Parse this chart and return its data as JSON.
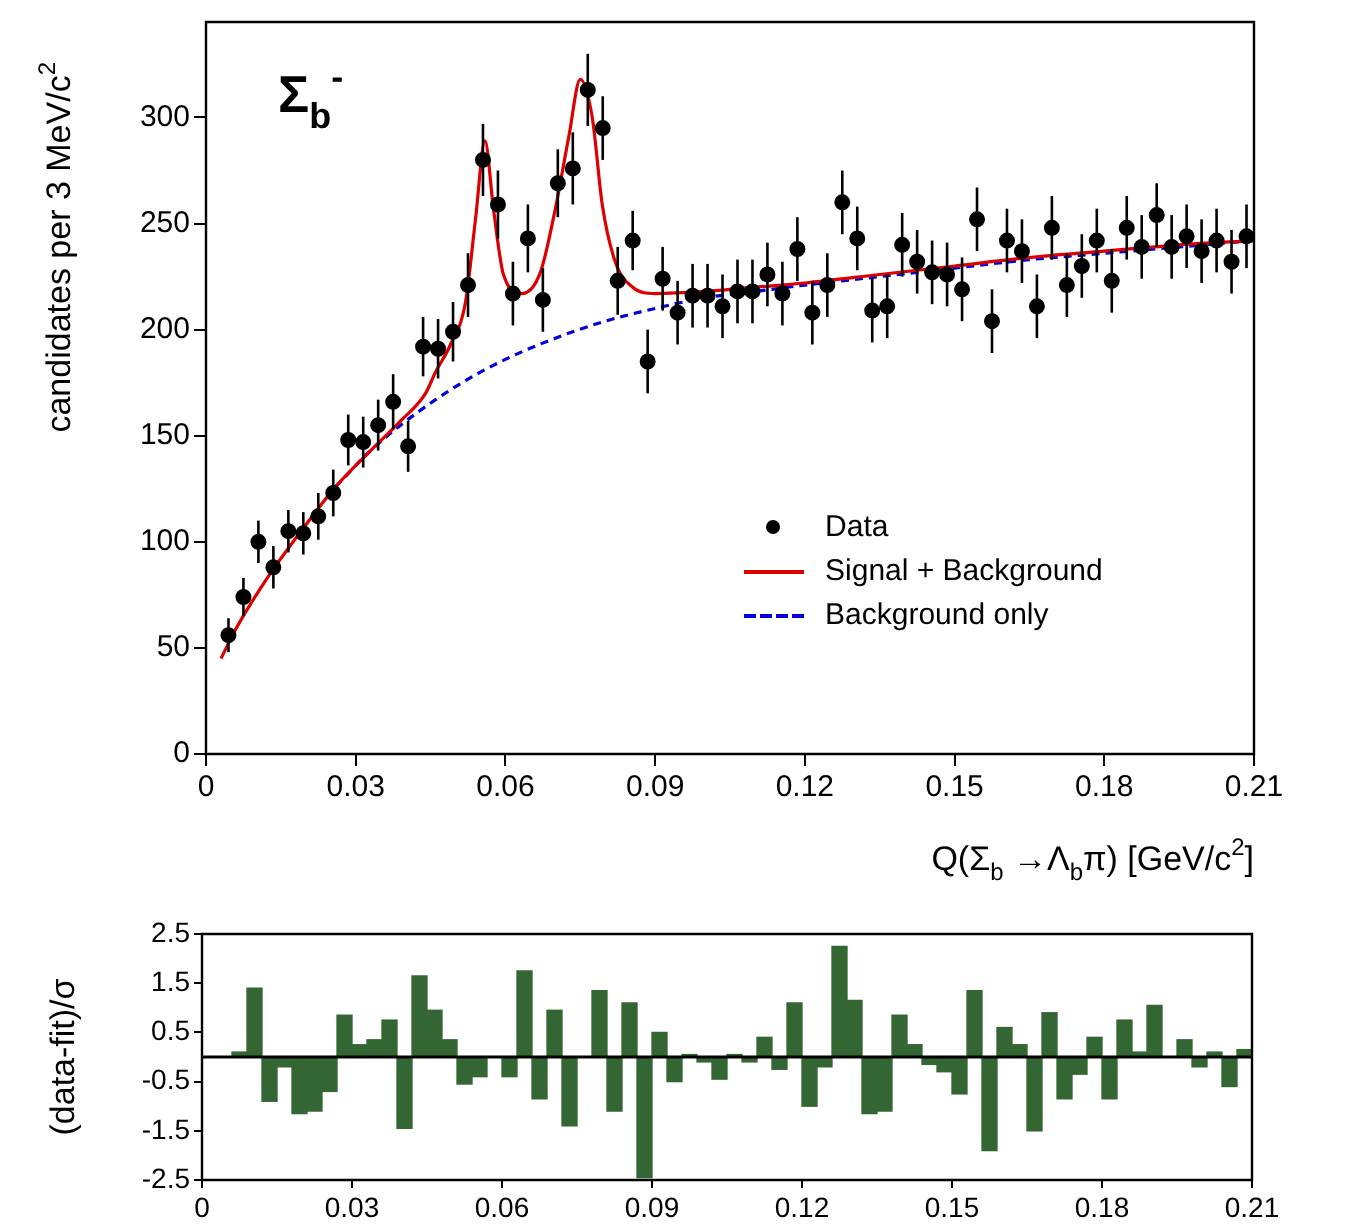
{
  "chart_data": [
    {
      "type": "scatter",
      "annotations": [
        "Σ$_{b}$$^{-}$"
      ],
      "xlabel": "Q(Σ$_{b}$ →Λ$_{b}$π) [GeV/c$^{2}$]",
      "ylabel": "candidates per 3 MeV/c$^{2}$",
      "xlim": [
        0,
        0.21
      ],
      "xticks": [
        0,
        0.03,
        0.06,
        0.09,
        0.12,
        0.15,
        0.18,
        0.21
      ],
      "ylim": [
        0,
        345
      ],
      "yticks": [
        0,
        50,
        100,
        150,
        200,
        250,
        300
      ],
      "legend": "bottom right",
      "series": [
        {
          "name": "Data",
          "color": "#000000",
          "marker": "circle",
          "x": [
            0.0045,
            0.0075,
            0.0105,
            0.0135,
            0.0165,
            0.0195,
            0.0225,
            0.0255,
            0.0285,
            0.0315,
            0.0345,
            0.0375,
            0.0405,
            0.0435,
            0.0465,
            0.0495,
            0.0525,
            0.0555,
            0.0585,
            0.0615,
            0.0645,
            0.0675,
            0.0705,
            0.0735,
            0.0765,
            0.0795,
            0.0825,
            0.0855,
            0.0885,
            0.0915,
            0.0945,
            0.0975,
            0.1005,
            0.1035,
            0.1065,
            0.1095,
            0.1125,
            0.1155,
            0.1185,
            0.1215,
            0.1245,
            0.1275,
            0.1305,
            0.1335,
            0.1365,
            0.1395,
            0.1425,
            0.1455,
            0.1485,
            0.1515,
            0.1545,
            0.1575,
            0.1605,
            0.1635,
            0.1665,
            0.1695,
            0.1725,
            0.1755,
            0.1785,
            0.1815,
            0.1845,
            0.1875,
            0.1905,
            0.1935,
            0.1965,
            0.1995,
            0.2025,
            0.2055,
            0.2085
          ],
          "values": [
            56,
            74,
            100,
            88,
            105,
            104,
            112,
            123,
            148,
            147,
            155,
            166,
            145,
            192,
            191,
            199,
            221,
            280,
            259,
            217,
            243,
            214,
            269,
            276,
            313,
            295,
            223,
            242,
            185,
            224,
            208,
            216,
            216,
            211,
            218,
            218,
            226,
            217,
            238,
            208,
            221,
            260,
            243,
            209,
            211,
            240,
            232,
            227,
            226,
            219,
            252,
            204,
            242,
            237,
            211,
            248,
            221,
            230,
            242,
            223,
            248,
            239,
            254,
            239,
            244,
            237,
            242,
            232,
            244
          ],
          "errors": [
            8,
            9,
            10,
            10,
            10,
            10,
            11,
            11,
            12,
            12,
            12,
            13,
            12,
            14,
            14,
            14,
            15,
            17,
            16,
            15,
            16,
            15,
            16,
            17,
            17,
            15,
            16,
            14,
            15,
            15,
            15,
            15,
            15,
            15,
            15,
            15,
            15,
            15,
            15,
            15,
            15,
            15,
            15,
            15,
            15,
            15,
            15,
            15,
            15,
            15,
            15,
            15,
            15,
            15,
            15,
            15,
            15,
            15,
            15,
            15,
            15,
            15,
            15,
            15,
            15,
            15,
            15,
            15,
            15
          ]
        },
        {
          "name": "Signal + Background",
          "type": "line",
          "color": "#dd0000",
          "marker": "none",
          "line_style": "solid",
          "x": [
            0.003,
            0.006,
            0.012,
            0.02,
            0.026,
            0.033,
            0.039,
            0.044,
            0.046,
            0.049,
            0.052,
            0.054,
            0.0559,
            0.0576,
            0.0596,
            0.0633,
            0.067,
            0.07,
            0.0727,
            0.075,
            0.0774,
            0.0794,
            0.082,
            0.0855,
            0.09,
            0.1,
            0.11,
            0.12,
            0.135,
            0.15,
            0.165,
            0.18,
            0.195,
            0.21
          ],
          "values": [
            45,
            59,
            82,
            108,
            126,
            143,
            157,
            170,
            180,
            193,
            213,
            252,
            289,
            257,
            226,
            217,
            227,
            257,
            291,
            318,
            300,
            259,
            232,
            220,
            217,
            218,
            220,
            222,
            226,
            230,
            234,
            237,
            240,
            242
          ]
        },
        {
          "name": "Background only",
          "type": "line",
          "color": "#0000dd",
          "marker": "none",
          "line_style": "dashed",
          "x": [
            0.026,
            0.033,
            0.039,
            0.046,
            0.052,
            0.06,
            0.07,
            0.08,
            0.09,
            0.1,
            0.11,
            0.12,
            0.135,
            0.15,
            0.165,
            0.18,
            0.195,
            0.21
          ],
          "values": [
            126,
            143,
            155,
            167,
            176,
            186,
            196,
            204,
            210,
            215,
            218,
            221,
            225,
            229,
            233,
            236,
            239,
            242
          ]
        }
      ]
    },
    {
      "type": "bar",
      "ylabel": "(data-fit)/σ",
      "color": "#336633",
      "xlim": [
        0,
        0.21
      ],
      "xticks": [
        0,
        0.03,
        0.06,
        0.09,
        0.12,
        0.15,
        0.18,
        0.21
      ],
      "ylim": [
        -2.5,
        2.5
      ],
      "yticks": [
        -2.5,
        -1.5,
        -0.5,
        0.5,
        1.5,
        2.5
      ],
      "ref_lines": [
        {
          "axis": "y",
          "value": 0,
          "color": "#000000"
        }
      ],
      "x": [
        0.0075,
        0.0105,
        0.0135,
        0.0165,
        0.0195,
        0.0225,
        0.0255,
        0.0285,
        0.0315,
        0.0345,
        0.0375,
        0.0405,
        0.0435,
        0.0465,
        0.0495,
        0.0525,
        0.0555,
        0.0585,
        0.0615,
        0.0645,
        0.0675,
        0.0705,
        0.0735,
        0.0765,
        0.0795,
        0.0825,
        0.0855,
        0.0885,
        0.0915,
        0.0945,
        0.0975,
        0.1005,
        0.1035,
        0.1065,
        0.1095,
        0.1125,
        0.1155,
        0.1185,
        0.1215,
        0.1245,
        0.1275,
        0.1305,
        0.1335,
        0.1365,
        0.1395,
        0.1425,
        0.1455,
        0.1485,
        0.1515,
        0.1545,
        0.1575,
        0.1605,
        0.1635,
        0.1665,
        0.1695,
        0.1725,
        0.1755,
        0.1785,
        0.1815,
        0.1845,
        0.1875,
        0.1905,
        0.1935,
        0.1965,
        0.1995,
        0.2025,
        0.2055,
        0.2085
      ],
      "values": [
        0.1,
        1.4,
        -0.9,
        -0.2,
        -1.15,
        -1.1,
        -0.7,
        0.85,
        0.25,
        0.35,
        0.75,
        -1.45,
        1.65,
        0.95,
        0.35,
        -0.55,
        -0.4,
        null,
        -0.4,
        1.75,
        -0.85,
        0.95,
        -1.4,
        null,
        1.35,
        -1.1,
        1.1,
        -2.45,
        0.5,
        -0.5,
        0.05,
        -0.1,
        -0.45,
        0.05,
        -0.1,
        0.4,
        -0.25,
        1.1,
        -1.0,
        -0.2,
        2.25,
        1.15,
        -1.15,
        -1.1,
        0.85,
        0.25,
        -0.15,
        -0.3,
        -0.75,
        1.35,
        -1.9,
        0.6,
        0.25,
        -1.5,
        0.9,
        -0.85,
        -0.35,
        0.4,
        -0.85,
        0.75,
        0.1,
        1.05,
        null,
        0.35,
        -0.2,
        0.1,
        -0.6,
        0.15
      ]
    }
  ]
}
